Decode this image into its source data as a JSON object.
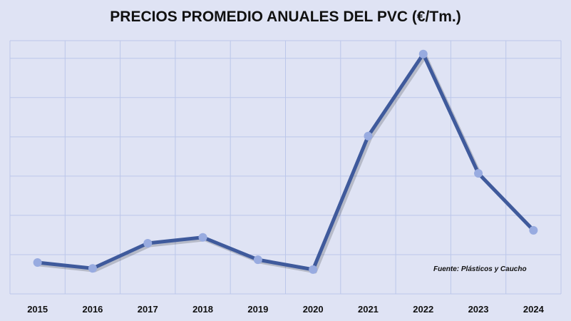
{
  "chart_data": {
    "type": "line",
    "title": "PRECIOS PROMEDIO ANUALES DEL PVC (€/Tm.)",
    "xlabel": "",
    "ylabel": "",
    "categories": [
      "2015",
      "2016",
      "2017",
      "2018",
      "2019",
      "2020",
      "2021",
      "2022",
      "2023",
      "2024"
    ],
    "series": [
      {
        "name": "PVC",
        "values": [
          0.8,
          0.65,
          1.29,
          1.44,
          0.87,
          0.62,
          4.02,
          6.11,
          3.07,
          1.62
        ]
      }
    ],
    "ylim": [
      0,
      6.45
    ],
    "y_grid_step": 1,
    "y_units_note_hidden": true,
    "grid": true,
    "source": "Fuente: Plásticos y Caucho",
    "colors": {
      "line": "#3f5a9c",
      "marker": "#98abe0",
      "grid": "#bcc7ea",
      "background": "#dfe3f4"
    }
  }
}
